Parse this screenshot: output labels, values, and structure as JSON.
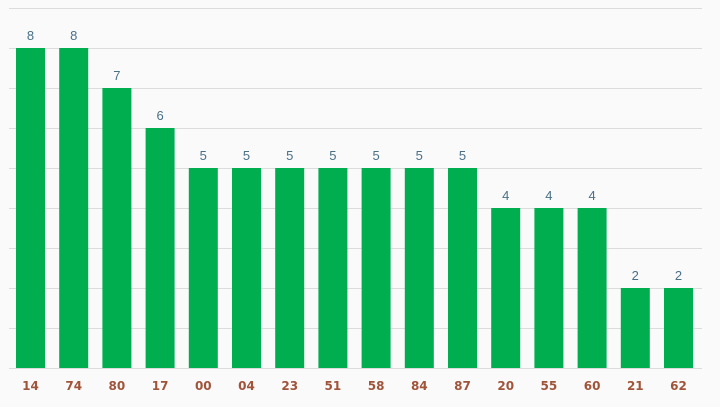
{
  "chart_data": {
    "type": "bar",
    "categories": [
      "14",
      "74",
      "80",
      "17",
      "00",
      "04",
      "23",
      "51",
      "58",
      "84",
      "87",
      "20",
      "55",
      "60",
      "21",
      "62"
    ],
    "values": [
      8,
      8,
      7,
      6,
      5,
      5,
      5,
      5,
      5,
      5,
      5,
      4,
      4,
      4,
      2,
      2
    ],
    "title": "",
    "xlabel": "",
    "ylabel": "",
    "ylim": [
      0,
      9
    ],
    "grid": true,
    "show_data_labels": true,
    "legend": "none",
    "colors": {
      "bar": "#00ad4f",
      "value_label": "#4a7088",
      "tick_label": "#a0543a",
      "grid": "#dcdcdc",
      "background": "#fafafa"
    }
  }
}
